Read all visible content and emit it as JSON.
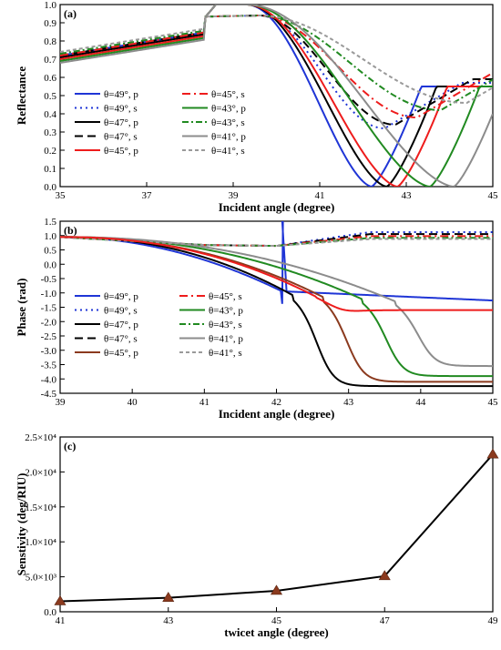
{
  "chart_data": [
    {
      "panel": "(a)",
      "type": "line",
      "xlabel": "Incident angle (degree)",
      "ylabel": "Reflectance",
      "xlim": [
        35,
        45
      ],
      "ylim": [
        0.0,
        1.0
      ],
      "xticks": [
        "35",
        "37",
        "39",
        "41",
        "43",
        "45"
      ],
      "yticks": [
        "0.0",
        "0.1",
        "0.2",
        "0.3",
        "0.4",
        "0.5",
        "0.6",
        "0.7",
        "0.8",
        "0.9",
        "1.0"
      ],
      "legend_position": "left-lower",
      "series": [
        {
          "name": "θ=49°, p",
          "color": "#1f35d6",
          "style": "solid",
          "dip": 42.2,
          "pre": 0.72
        },
        {
          "name": "θ=49°, s",
          "color": "#1f35d6",
          "style": "dot",
          "dip": 42.5,
          "pre": 0.71,
          "min": 0.32
        },
        {
          "name": "θ=47°, p",
          "color": "#000000",
          "style": "solid",
          "dip": 42.55,
          "pre": 0.71
        },
        {
          "name": "θ=47°, s",
          "color": "#000000",
          "style": "dash",
          "dip": 42.75,
          "pre": 0.72,
          "min": 0.34
        },
        {
          "name": "θ=45°, p",
          "color": "#ee1c1c",
          "style": "solid",
          "dip": 42.8,
          "pre": 0.7
        },
        {
          "name": "θ=45°, s",
          "color": "#ee1c1c",
          "style": "dashdot",
          "dip": 43.25,
          "pre": 0.72,
          "min": 0.38
        },
        {
          "name": "θ=43°, p",
          "color": "#218a21",
          "style": "solid",
          "dip": 43.55,
          "pre": 0.69
        },
        {
          "name": "θ=43°, s",
          "color": "#218a21",
          "style": "dashdot2",
          "dip": 43.8,
          "pre": 0.73,
          "min": 0.42
        },
        {
          "name": "θ=41°, p",
          "color": "#8c8c8c",
          "style": "solid",
          "dip": 44.1,
          "pre": 0.68
        },
        {
          "name": "θ=41°, s",
          "color": "#9a9a9a",
          "style": "shortdash",
          "dip": 44.4,
          "pre": 0.74,
          "min": 0.46
        }
      ]
    },
    {
      "panel": "(b)",
      "type": "line",
      "xlabel": "Incident angle (degree)",
      "ylabel": "Phase (rad)",
      "xlim": [
        39,
        45
      ],
      "ylim": [
        -4.5,
        1.5
      ],
      "xticks": [
        "39",
        "40",
        "41",
        "42",
        "43",
        "44",
        "45"
      ],
      "yticks": [
        "1.5",
        "1.0",
        "0.5",
        "0.0",
        "-0.5",
        "-1.0",
        "-1.5",
        "-2.0",
        "-2.5",
        "-3.0",
        "-3.5",
        "-4.0",
        "-4.5"
      ],
      "legend_position": "center",
      "series": [
        {
          "name": "θ=49°, p",
          "color": "#1f35d6",
          "style": "solid",
          "center": 42.1,
          "end": -1.25,
          "spike": true
        },
        {
          "name": "θ=49°, s",
          "color": "#1f35d6",
          "style": "dot",
          "end": 1.12
        },
        {
          "name": "θ=47°, p",
          "color": "#000000",
          "style": "solid",
          "center": 42.58,
          "end": -4.25
        },
        {
          "name": "θ=47°, s",
          "color": "#000000",
          "style": "dash",
          "end": 1.05
        },
        {
          "name": "θ=45°, p",
          "color": "#8b3a1e",
          "style": "solid",
          "center": 43.0,
          "end": -4.1
        },
        {
          "name": "θ=45°, s",
          "color": "#ee1c1c",
          "style": "dashdot",
          "end": 0.98
        },
        {
          "name": "θ=43°, p",
          "color": "#218a21",
          "style": "solid",
          "center": 43.55,
          "end": -3.9
        },
        {
          "name": "θ=43°, s",
          "color": "#218a21",
          "style": "dashdot2",
          "end": 0.92
        },
        {
          "name": "θ=41°, p",
          "color": "#8c8c8c",
          "style": "solid",
          "center": 44.0,
          "end": -3.55
        },
        {
          "name": "θ=41°, s",
          "color": "#9a9a9a",
          "style": "shortdash",
          "end": 0.88
        }
      ],
      "extra_series": [
        {
          "name": "",
          "color": "#ee1c1c",
          "style": "solid",
          "center": 42.9,
          "end": -1.6
        }
      ]
    },
    {
      "panel": "(c)",
      "type": "line",
      "xlabel": "twicet  angle (degree)",
      "ylabel": "Senstivity (deg/RIU)",
      "x": [
        41,
        43,
        45,
        47,
        49
      ],
      "y": [
        1500,
        2000,
        3000,
        5100,
        22500
      ],
      "xlim": [
        41,
        49
      ],
      "ylim": [
        0,
        25000
      ],
      "xticks": [
        "41",
        "43",
        "45",
        "47",
        "49"
      ],
      "yticks": [
        "0.0",
        "5.0×10³",
        "1.0×10⁴",
        "1.5×10⁴",
        "2.0×10⁴",
        "2.5×10⁴"
      ],
      "marker": "triangle",
      "marker_color": "#8b3a1e",
      "line_color": "#000000"
    }
  ]
}
